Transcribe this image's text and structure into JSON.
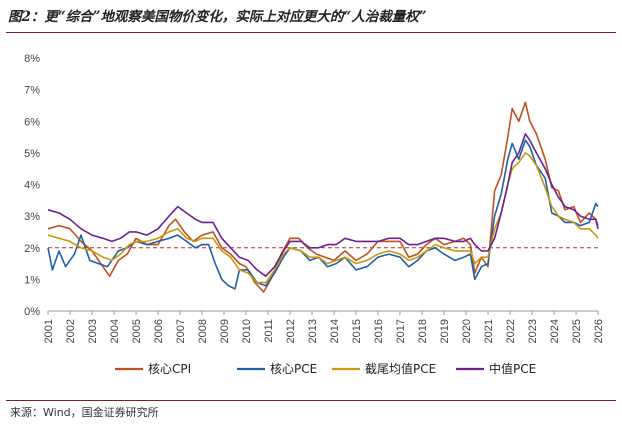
{
  "header": {
    "title": "图2：更“综合”地观察美国物价变化，实际上对应更大的“人治裁量权”"
  },
  "footer": {
    "source": "来源：Wind，国金证券研究所"
  },
  "chart_data": {
    "type": "line",
    "title": "",
    "xlabel": "",
    "ylabel": "",
    "xlim": [
      2001,
      2026
    ],
    "ylim": [
      0,
      8
    ],
    "y_ticks": [
      "0%",
      "1%",
      "2%",
      "3%",
      "4%",
      "5%",
      "6%",
      "7%",
      "8%"
    ],
    "x_ticks": [
      "2001",
      "2002",
      "2003",
      "2004",
      "2005",
      "2006",
      "2007",
      "2008",
      "2009",
      "2010",
      "2011",
      "2012",
      "2013",
      "2014",
      "2015",
      "2016",
      "2017",
      "2018",
      "2019",
      "2020",
      "2021",
      "2022",
      "2023",
      "2024",
      "2025",
      "2026"
    ],
    "reference_line": {
      "y": 2,
      "style": "dashed",
      "color": "#b03030"
    },
    "grid": false,
    "legend_position": "bottom",
    "series": [
      {
        "name": "核心CPI",
        "color": "#c0501f",
        "points": [
          [
            2001.0,
            2.6
          ],
          [
            2001.5,
            2.7
          ],
          [
            2002.0,
            2.6
          ],
          [
            2002.5,
            2.2
          ],
          [
            2003.0,
            1.9
          ],
          [
            2003.4,
            1.5
          ],
          [
            2003.8,
            1.1
          ],
          [
            2004.2,
            1.6
          ],
          [
            2004.6,
            1.8
          ],
          [
            2005.0,
            2.3
          ],
          [
            2005.5,
            2.1
          ],
          [
            2006.0,
            2.1
          ],
          [
            2006.5,
            2.7
          ],
          [
            2006.8,
            2.9
          ],
          [
            2007.2,
            2.5
          ],
          [
            2007.6,
            2.2
          ],
          [
            2008.0,
            2.4
          ],
          [
            2008.5,
            2.5
          ],
          [
            2008.9,
            2.0
          ],
          [
            2009.3,
            1.8
          ],
          [
            2009.7,
            1.5
          ],
          [
            2010.0,
            1.4
          ],
          [
            2010.4,
            0.9
          ],
          [
            2010.8,
            0.6
          ],
          [
            2011.2,
            1.1
          ],
          [
            2011.6,
            1.8
          ],
          [
            2012.0,
            2.3
          ],
          [
            2012.4,
            2.3
          ],
          [
            2012.8,
            2.0
          ],
          [
            2013.2,
            1.8
          ],
          [
            2013.6,
            1.7
          ],
          [
            2014.0,
            1.6
          ],
          [
            2014.5,
            1.9
          ],
          [
            2015.0,
            1.6
          ],
          [
            2015.5,
            1.8
          ],
          [
            2016.0,
            2.2
          ],
          [
            2016.5,
            2.2
          ],
          [
            2017.0,
            2.2
          ],
          [
            2017.4,
            1.7
          ],
          [
            2017.8,
            1.8
          ],
          [
            2018.2,
            2.1
          ],
          [
            2018.6,
            2.3
          ],
          [
            2019.0,
            2.1
          ],
          [
            2019.5,
            2.2
          ],
          [
            2019.9,
            2.3
          ],
          [
            2020.2,
            2.1
          ],
          [
            2020.4,
            1.2
          ],
          [
            2020.7,
            1.7
          ],
          [
            2021.0,
            1.4
          ],
          [
            2021.3,
            3.8
          ],
          [
            2021.6,
            4.3
          ],
          [
            2021.9,
            5.5
          ],
          [
            2022.1,
            6.4
          ],
          [
            2022.4,
            6.0
          ],
          [
            2022.7,
            6.6
          ],
          [
            2022.9,
            6.0
          ],
          [
            2023.2,
            5.6
          ],
          [
            2023.6,
            4.8
          ],
          [
            2023.9,
            3.9
          ],
          [
            2024.2,
            3.8
          ],
          [
            2024.5,
            3.2
          ],
          [
            2024.9,
            3.3
          ],
          [
            2025.2,
            2.8
          ],
          [
            2025.6,
            3.1
          ],
          [
            2025.9,
            2.9
          ],
          [
            2026.0,
            2.7
          ]
        ]
      },
      {
        "name": "核心PCE",
        "color": "#2060a8",
        "points": [
          [
            2001.0,
            2.0
          ],
          [
            2001.2,
            1.3
          ],
          [
            2001.5,
            1.9
          ],
          [
            2001.8,
            1.4
          ],
          [
            2002.2,
            1.8
          ],
          [
            2002.5,
            2.4
          ],
          [
            2002.9,
            1.6
          ],
          [
            2003.3,
            1.5
          ],
          [
            2003.7,
            1.4
          ],
          [
            2004.2,
            1.9
          ],
          [
            2004.6,
            2.0
          ],
          [
            2005.0,
            2.2
          ],
          [
            2005.5,
            2.1
          ],
          [
            2006.0,
            2.2
          ],
          [
            2006.5,
            2.3
          ],
          [
            2006.9,
            2.4
          ],
          [
            2007.3,
            2.2
          ],
          [
            2007.7,
            2.0
          ],
          [
            2008.0,
            2.1
          ],
          [
            2008.3,
            2.1
          ],
          [
            2008.6,
            1.5
          ],
          [
            2008.9,
            1.0
          ],
          [
            2009.2,
            0.8
          ],
          [
            2009.5,
            0.7
          ],
          [
            2009.7,
            1.3
          ],
          [
            2010.1,
            1.3
          ],
          [
            2010.5,
            0.9
          ],
          [
            2010.9,
            0.8
          ],
          [
            2011.3,
            1.2
          ],
          [
            2011.7,
            1.7
          ],
          [
            2012.0,
            2.0
          ],
          [
            2012.5,
            1.9
          ],
          [
            2012.9,
            1.6
          ],
          [
            2013.3,
            1.7
          ],
          [
            2013.7,
            1.4
          ],
          [
            2014.1,
            1.5
          ],
          [
            2014.5,
            1.7
          ],
          [
            2015.0,
            1.3
          ],
          [
            2015.5,
            1.4
          ],
          [
            2016.0,
            1.7
          ],
          [
            2016.5,
            1.8
          ],
          [
            2017.0,
            1.7
          ],
          [
            2017.4,
            1.4
          ],
          [
            2017.8,
            1.6
          ],
          [
            2018.2,
            1.9
          ],
          [
            2018.6,
            2.0
          ],
          [
            2019.0,
            1.8
          ],
          [
            2019.5,
            1.6
          ],
          [
            2019.9,
            1.7
          ],
          [
            2020.2,
            1.8
          ],
          [
            2020.4,
            1.0
          ],
          [
            2020.7,
            1.4
          ],
          [
            2021.0,
            1.5
          ],
          [
            2021.3,
            3.0
          ],
          [
            2021.6,
            3.7
          ],
          [
            2021.9,
            4.8
          ],
          [
            2022.1,
            5.3
          ],
          [
            2022.4,
            4.8
          ],
          [
            2022.7,
            5.4
          ],
          [
            2022.9,
            5.2
          ],
          [
            2023.2,
            4.6
          ],
          [
            2023.6,
            4.2
          ],
          [
            2023.9,
            3.1
          ],
          [
            2024.2,
            3.0
          ],
          [
            2024.5,
            2.8
          ],
          [
            2024.9,
            2.8
          ],
          [
            2025.2,
            2.7
          ],
          [
            2025.6,
            2.8
          ],
          [
            2025.9,
            3.4
          ],
          [
            2026.0,
            3.3
          ]
        ]
      },
      {
        "name": "截尾均值PCE",
        "color": "#c8980c",
        "points": [
          [
            2001.0,
            2.4
          ],
          [
            2001.5,
            2.3
          ],
          [
            2002.0,
            2.2
          ],
          [
            2002.5,
            2.0
          ],
          [
            2003.0,
            1.9
          ],
          [
            2003.5,
            1.7
          ],
          [
            2003.9,
            1.6
          ],
          [
            2004.3,
            1.8
          ],
          [
            2004.7,
            2.1
          ],
          [
            2005.0,
            2.2
          ],
          [
            2005.5,
            2.2
          ],
          [
            2006.0,
            2.3
          ],
          [
            2006.5,
            2.5
          ],
          [
            2006.9,
            2.6
          ],
          [
            2007.3,
            2.3
          ],
          [
            2007.7,
            2.2
          ],
          [
            2008.0,
            2.3
          ],
          [
            2008.5,
            2.3
          ],
          [
            2008.9,
            1.9
          ],
          [
            2009.3,
            1.7
          ],
          [
            2009.7,
            1.3
          ],
          [
            2010.1,
            1.2
          ],
          [
            2010.5,
            0.9
          ],
          [
            2010.9,
            0.9
          ],
          [
            2011.3,
            1.3
          ],
          [
            2011.7,
            1.8
          ],
          [
            2012.0,
            2.0
          ],
          [
            2012.5,
            1.9
          ],
          [
            2012.9,
            1.7
          ],
          [
            2013.3,
            1.7
          ],
          [
            2013.7,
            1.5
          ],
          [
            2014.1,
            1.6
          ],
          [
            2014.5,
            1.7
          ],
          [
            2015.0,
            1.5
          ],
          [
            2015.5,
            1.6
          ],
          [
            2016.0,
            1.8
          ],
          [
            2016.5,
            1.9
          ],
          [
            2017.0,
            1.8
          ],
          [
            2017.4,
            1.6
          ],
          [
            2017.8,
            1.7
          ],
          [
            2018.2,
            1.9
          ],
          [
            2018.6,
            2.1
          ],
          [
            2019.0,
            2.0
          ],
          [
            2019.5,
            1.9
          ],
          [
            2019.9,
            1.9
          ],
          [
            2020.2,
            1.9
          ],
          [
            2020.4,
            1.5
          ],
          [
            2020.7,
            1.7
          ],
          [
            2021.0,
            1.7
          ],
          [
            2021.3,
            2.6
          ],
          [
            2021.6,
            3.1
          ],
          [
            2021.9,
            4.0
          ],
          [
            2022.1,
            4.5
          ],
          [
            2022.4,
            4.7
          ],
          [
            2022.7,
            5.0
          ],
          [
            2022.9,
            4.9
          ],
          [
            2023.2,
            4.6
          ],
          [
            2023.6,
            3.9
          ],
          [
            2023.9,
            3.3
          ],
          [
            2024.2,
            3.0
          ],
          [
            2024.5,
            2.9
          ],
          [
            2024.9,
            2.8
          ],
          [
            2025.2,
            2.6
          ],
          [
            2025.6,
            2.6
          ],
          [
            2025.9,
            2.4
          ],
          [
            2026.0,
            2.3
          ]
        ]
      },
      {
        "name": "中值PCE",
        "color": "#6a2290",
        "points": [
          [
            2001.0,
            3.2
          ],
          [
            2001.5,
            3.1
          ],
          [
            2002.0,
            2.9
          ],
          [
            2002.5,
            2.6
          ],
          [
            2003.0,
            2.4
          ],
          [
            2003.5,
            2.3
          ],
          [
            2003.9,
            2.2
          ],
          [
            2004.3,
            2.3
          ],
          [
            2004.7,
            2.5
          ],
          [
            2005.0,
            2.5
          ],
          [
            2005.5,
            2.4
          ],
          [
            2006.0,
            2.6
          ],
          [
            2006.5,
            3.0
          ],
          [
            2006.9,
            3.3
          ],
          [
            2007.3,
            3.1
          ],
          [
            2007.7,
            2.9
          ],
          [
            2008.0,
            2.8
          ],
          [
            2008.5,
            2.8
          ],
          [
            2008.9,
            2.3
          ],
          [
            2009.3,
            2.0
          ],
          [
            2009.7,
            1.7
          ],
          [
            2010.1,
            1.6
          ],
          [
            2010.5,
            1.3
          ],
          [
            2010.9,
            1.1
          ],
          [
            2011.3,
            1.4
          ],
          [
            2011.7,
            1.9
          ],
          [
            2012.0,
            2.2
          ],
          [
            2012.5,
            2.2
          ],
          [
            2012.9,
            2.0
          ],
          [
            2013.3,
            2.0
          ],
          [
            2013.7,
            2.1
          ],
          [
            2014.1,
            2.1
          ],
          [
            2014.5,
            2.3
          ],
          [
            2015.0,
            2.2
          ],
          [
            2015.5,
            2.2
          ],
          [
            2016.0,
            2.2
          ],
          [
            2016.5,
            2.3
          ],
          [
            2017.0,
            2.3
          ],
          [
            2017.4,
            2.1
          ],
          [
            2017.8,
            2.1
          ],
          [
            2018.2,
            2.2
          ],
          [
            2018.6,
            2.3
          ],
          [
            2019.0,
            2.3
          ],
          [
            2019.5,
            2.2
          ],
          [
            2019.9,
            2.2
          ],
          [
            2020.2,
            2.3
          ],
          [
            2020.4,
            2.1
          ],
          [
            2020.7,
            1.9
          ],
          [
            2021.0,
            1.9
          ],
          [
            2021.3,
            2.3
          ],
          [
            2021.6,
            3.1
          ],
          [
            2021.9,
            4.0
          ],
          [
            2022.1,
            4.7
          ],
          [
            2022.4,
            5.0
          ],
          [
            2022.7,
            5.6
          ],
          [
            2022.9,
            5.4
          ],
          [
            2023.2,
            5.0
          ],
          [
            2023.6,
            4.5
          ],
          [
            2023.9,
            4.0
          ],
          [
            2024.2,
            3.6
          ],
          [
            2024.5,
            3.3
          ],
          [
            2024.9,
            3.2
          ],
          [
            2025.2,
            3.0
          ],
          [
            2025.6,
            2.9
          ],
          [
            2025.9,
            2.9
          ],
          [
            2026.0,
            2.6
          ]
        ]
      }
    ]
  }
}
